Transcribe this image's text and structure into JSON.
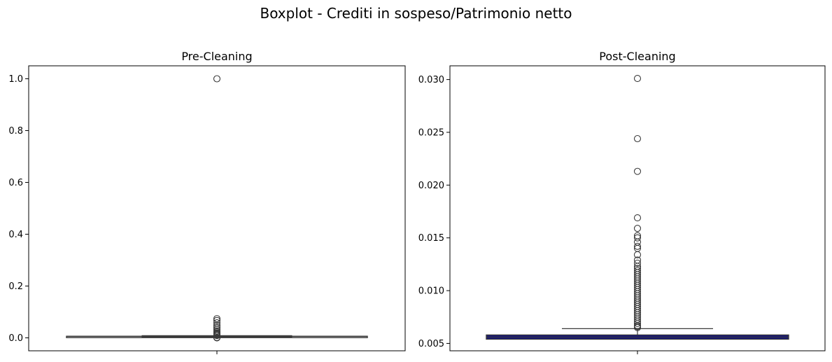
{
  "suptitle": "Boxplot - Crediti in sospeso/Patrimonio netto",
  "colors": {
    "pre_box_edge": "#3a3a3a",
    "post_box_fill": "#0f0f80",
    "whisker": "#3a3a3a",
    "outlier_edge": "#3a3a3a"
  },
  "chart_data": [
    {
      "type": "box",
      "title": "Pre-Cleaning",
      "xlabel": "",
      "ylabel": "",
      "ylim": [
        -0.05,
        1.05
      ],
      "yticks": [
        0.0,
        0.2,
        0.4,
        0.6,
        0.8,
        1.0
      ],
      "ytick_labels": [
        "0.0",
        "0.2",
        "0.4",
        "0.6",
        "0.8",
        "1.0"
      ],
      "grid": false,
      "box": {
        "q1": 0.0048,
        "median": 0.0056,
        "q3": 0.0062,
        "whisker_low": 0.0033,
        "whisker_high": 0.0085
      },
      "outliers": [
        1.0,
        0.074,
        0.067,
        0.058,
        0.048,
        0.04,
        0.033,
        0.027,
        0.022,
        0.018,
        0.015,
        0.012,
        0.01,
        0.009,
        0.0015,
        0.0008,
        0.0002
      ]
    },
    {
      "type": "box",
      "title": "Post-Cleaning",
      "xlabel": "",
      "ylabel": "",
      "ylim": [
        0.0043,
        0.0313
      ],
      "yticks": [
        0.005,
        0.01,
        0.015,
        0.02,
        0.025,
        0.03
      ],
      "ytick_labels": [
        "0.005",
        "0.010",
        "0.015",
        "0.020",
        "0.025",
        "0.030"
      ],
      "grid": false,
      "box": {
        "q1": 0.0054,
        "median": 0.0056,
        "q3": 0.0058,
        "whisker_low": 0.0054,
        "whisker_high": 0.0064
      },
      "outliers": [
        0.0301,
        0.0244,
        0.0213,
        0.0169,
        0.0159,
        0.0152,
        0.015,
        0.0146,
        0.0142,
        0.014,
        0.0134,
        0.0129,
        0.0126,
        0.0123,
        0.0121,
        0.0119,
        0.0117,
        0.0115,
        0.0113,
        0.0111,
        0.0109,
        0.0107,
        0.0105,
        0.0103,
        0.0101,
        0.0099,
        0.0097,
        0.0095,
        0.0093,
        0.0091,
        0.0089,
        0.0087,
        0.0085,
        0.0083,
        0.0081,
        0.0079,
        0.0077,
        0.0075,
        0.0073,
        0.0071,
        0.0069,
        0.0067,
        0.0066,
        0.0065
      ]
    }
  ]
}
